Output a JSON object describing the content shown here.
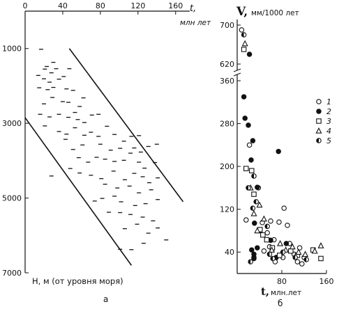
{
  "chart_data": [
    {
      "panel_label": "а",
      "type": "scatter",
      "marker": "dash",
      "xlabel": "t,",
      "xunit": "млн лет",
      "ylabel": "Н, м (от уровня моря)",
      "x_ticks": [
        0,
        40,
        80,
        120,
        160
      ],
      "y_ticks": [
        1000,
        3000,
        5000,
        7000
      ],
      "xlim": [
        0,
        175
      ],
      "ylim": [
        0,
        7000
      ],
      "y_inverted": true,
      "x_axis_position": "top",
      "boundary_lines": [
        {
          "from": [
            47,
            1000
          ],
          "to": [
            168,
            5100
          ]
        },
        {
          "from": [
            0,
            2850
          ],
          "to": [
            113,
            6800
          ]
        }
      ],
      "points": [
        [
          17,
          1020
        ],
        [
          21,
          1550
        ],
        [
          14,
          1720
        ],
        [
          23,
          1480
        ],
        [
          20,
          1810
        ],
        [
          26,
          1900
        ],
        [
          30,
          1370
        ],
        [
          28,
          1650
        ],
        [
          33,
          1540
        ],
        [
          36,
          1820
        ],
        [
          15,
          2050
        ],
        [
          24,
          2100
        ],
        [
          30,
          2040
        ],
        [
          41,
          1750
        ],
        [
          44,
          2080
        ],
        [
          47,
          1540
        ],
        [
          20,
          2480
        ],
        [
          29,
          2310
        ],
        [
          40,
          2420
        ],
        [
          46,
          2440
        ],
        [
          51,
          2120
        ],
        [
          53,
          2710
        ],
        [
          58,
          2550
        ],
        [
          62,
          2320
        ],
        [
          16,
          2760
        ],
        [
          26,
          2830
        ],
        [
          36,
          2760
        ],
        [
          46,
          2840
        ],
        [
          56,
          2900
        ],
        [
          63,
          2980
        ],
        [
          71,
          2780
        ],
        [
          78,
          2760
        ],
        [
          21,
          3070
        ],
        [
          36,
          3220
        ],
        [
          44,
          3290
        ],
        [
          53,
          3120
        ],
        [
          63,
          3320
        ],
        [
          70,
          3240
        ],
        [
          78,
          3350
        ],
        [
          87,
          3080
        ],
        [
          95,
          3300
        ],
        [
          105,
          3480
        ],
        [
          113,
          3350
        ],
        [
          121,
          3330
        ],
        [
          43,
          3430
        ],
        [
          51,
          3700
        ],
        [
          61,
          3580
        ],
        [
          80,
          3560
        ],
        [
          91,
          3720
        ],
        [
          101,
          3670
        ],
        [
          116,
          3660
        ],
        [
          123,
          3770
        ],
        [
          131,
          3620
        ],
        [
          140,
          3560
        ],
        [
          57,
          3920
        ],
        [
          67,
          4040
        ],
        [
          76,
          3910
        ],
        [
          85,
          3960
        ],
        [
          95,
          4020
        ],
        [
          105,
          3990
        ],
        [
          112,
          3800
        ],
        [
          121,
          4040
        ],
        [
          127,
          4200
        ],
        [
          138,
          4050
        ],
        [
          28,
          4410
        ],
        [
          48,
          4210
        ],
        [
          58,
          4330
        ],
        [
          70,
          4390
        ],
        [
          81,
          4480
        ],
        [
          94,
          4280
        ],
        [
          106,
          4510
        ],
        [
          116,
          4340
        ],
        [
          125,
          4430
        ],
        [
          132,
          4590
        ],
        [
          141,
          4460
        ],
        [
          85,
          4630
        ],
        [
          98,
          4730
        ],
        [
          111,
          4680
        ],
        [
          121,
          4860
        ],
        [
          134,
          4780
        ],
        [
          74,
          5080
        ],
        [
          82,
          5010
        ],
        [
          95,
          4950
        ],
        [
          102,
          5100
        ],
        [
          117,
          5200
        ],
        [
          128,
          5150
        ],
        [
          141,
          5040
        ],
        [
          89,
          5380
        ],
        [
          101,
          5390
        ],
        [
          112,
          5440
        ],
        [
          125,
          5510
        ],
        [
          136,
          5610
        ],
        [
          106,
          5820
        ],
        [
          119,
          5700
        ],
        [
          131,
          5940
        ],
        [
          141,
          5800
        ],
        [
          150,
          6120
        ],
        [
          101,
          6370
        ],
        [
          113,
          6380
        ],
        [
          126,
          6210
        ]
      ]
    },
    {
      "panel_label": "б",
      "type": "scatter",
      "ylabel_symbol": "V,",
      "ylabel": "мм/1000 лет",
      "xlabel_symbol": "t,",
      "xlabel": "млн.лет",
      "x_ticks": [
        80,
        160
      ],
      "y_ticks": [
        40,
        120,
        200,
        280,
        360,
        620,
        700
      ],
      "xlim": [
        0,
        160
      ],
      "ylim": [
        0,
        720
      ],
      "axis_break": [
        380,
        600
      ],
      "legend": [
        "1",
        "2",
        "3",
        "4",
        "5"
      ],
      "legend_position": "right",
      "series": [
        {
          "name": "1",
          "marker": "open-circle",
          "points": [
            [
              8,
              690
            ],
            [
              22,
              240
            ],
            [
              38,
              160
            ],
            [
              16,
              100
            ],
            [
              30,
              30
            ],
            [
              45,
              95
            ],
            [
              54,
              76
            ],
            [
              60,
              98
            ],
            [
              66,
              63
            ],
            [
              75,
              96
            ],
            [
              84,
              122
            ],
            [
              90,
              90
            ],
            [
              102,
              36
            ],
            [
              112,
              48
            ],
            [
              120,
              30
            ],
            [
              48,
              42
            ],
            [
              58,
              50
            ],
            [
              68,
              22
            ],
            [
              82,
              30
            ],
            [
              94,
              56
            ],
            [
              108,
              22
            ],
            [
              116,
              18
            ]
          ]
        },
        {
          "name": "2",
          "marker": "filled-circle",
          "points": [
            [
              12,
              330
            ],
            [
              14,
              290
            ],
            [
              20,
              277
            ],
            [
              28,
              248
            ],
            [
              25,
              212
            ],
            [
              36,
              161
            ],
            [
              31,
              94
            ],
            [
              26,
              44
            ],
            [
              30,
              36
            ],
            [
              36,
              48
            ],
            [
              30,
              28
            ],
            [
              40,
              80
            ],
            [
              60,
              62
            ],
            [
              70,
              30
            ],
            [
              74,
              228
            ],
            [
              88,
              56
            ],
            [
              22,
              640
            ]
          ]
        },
        {
          "name": "3",
          "marker": "open-square",
          "points": [
            [
              12,
              650
            ],
            [
              16,
              196
            ],
            [
              26,
              192
            ],
            [
              30,
              148
            ],
            [
              41,
              82
            ],
            [
              46,
              72
            ],
            [
              53,
              63
            ],
            [
              63,
              48
            ],
            [
              76,
              34
            ],
            [
              96,
              42
            ],
            [
              108,
              34
            ],
            [
              136,
              44
            ],
            [
              150,
              28
            ]
          ]
        },
        {
          "name": "4",
          "marker": "open-triangle",
          "points": [
            [
              14,
              662
            ],
            [
              24,
              160
            ],
            [
              30,
              112
            ],
            [
              40,
              128
            ],
            [
              36,
              80
            ],
            [
              48,
              102
            ],
            [
              62,
              44
            ],
            [
              77,
              56
            ],
            [
              87,
              44
            ],
            [
              99,
              50
            ],
            [
              110,
              40
            ],
            [
              122,
              36
            ],
            [
              139,
              42
            ],
            [
              150,
              52
            ]
          ]
        },
        {
          "name": "5",
          "marker": "half-filled-circle",
          "points": [
            [
              12,
              680
            ],
            [
              20,
              160
            ],
            [
              30,
              182
            ],
            [
              34,
              134
            ],
            [
              28,
              122
            ],
            [
              54,
              88
            ],
            [
              64,
              28
            ],
            [
              58,
              36
            ],
            [
              24,
              22
            ],
            [
              82,
              40
            ],
            [
              104,
              30
            ],
            [
              124,
              26
            ]
          ]
        }
      ]
    }
  ]
}
